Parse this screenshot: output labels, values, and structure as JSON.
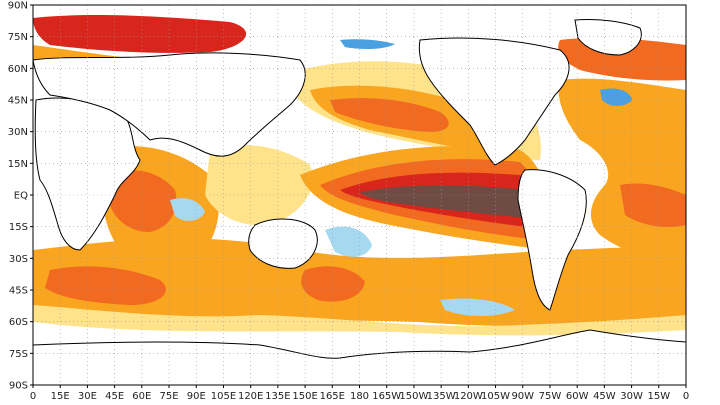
{
  "map": {
    "projection": "equirectangular",
    "lon_range": [
      0,
      360
    ],
    "lat_range": [
      -90,
      90
    ],
    "gridlines": "dotted",
    "y_ticks": [
      {
        "lat": 90,
        "label": "90N"
      },
      {
        "lat": 75,
        "label": "75N"
      },
      {
        "lat": 60,
        "label": "60N"
      },
      {
        "lat": 45,
        "label": "45N"
      },
      {
        "lat": 30,
        "label": "30N"
      },
      {
        "lat": 15,
        "label": "15N"
      },
      {
        "lat": 0,
        "label": "EQ"
      },
      {
        "lat": -15,
        "label": "15S"
      },
      {
        "lat": -30,
        "label": "30S"
      },
      {
        "lat": -45,
        "label": "45S"
      },
      {
        "lat": -60,
        "label": "60S"
      },
      {
        "lat": -75,
        "label": "75S"
      },
      {
        "lat": -90,
        "label": "90S"
      }
    ],
    "x_ticks": [
      {
        "lon": 0,
        "label": "0"
      },
      {
        "lon": 15,
        "label": "15E"
      },
      {
        "lon": 30,
        "label": "30E"
      },
      {
        "lon": 45,
        "label": "45E"
      },
      {
        "lon": 60,
        "label": "60E"
      },
      {
        "lon": 75,
        "label": "75E"
      },
      {
        "lon": 90,
        "label": "90E"
      },
      {
        "lon": 105,
        "label": "105E"
      },
      {
        "lon": 120,
        "label": "120E"
      },
      {
        "lon": 135,
        "label": "135E"
      },
      {
        "lon": 150,
        "label": "150E"
      },
      {
        "lon": 165,
        "label": "165E"
      },
      {
        "lon": 180,
        "label": "180"
      },
      {
        "lon": 195,
        "label": "165W"
      },
      {
        "lon": 210,
        "label": "150W"
      },
      {
        "lon": 225,
        "label": "135W"
      },
      {
        "lon": 240,
        "label": "120W"
      },
      {
        "lon": 255,
        "label": "105W"
      },
      {
        "lon": 270,
        "label": "90W"
      },
      {
        "lon": 285,
        "label": "75W"
      },
      {
        "lon": 300,
        "label": "60W"
      },
      {
        "lon": 315,
        "label": "45W"
      },
      {
        "lon": 330,
        "label": "30W"
      },
      {
        "lon": 345,
        "label": "15W"
      },
      {
        "lon": 360,
        "label": "0"
      }
    ],
    "colors": {
      "ocean_background": "#ffffff",
      "land": "#ffffff",
      "coast": "#000000",
      "anomaly_pale_yellow": "#ffe38a",
      "anomaly_orange": "#f9a520",
      "anomaly_red_orange": "#f26a1f",
      "anomaly_red": "#d9261c",
      "anomaly_dark": "#6e4b43",
      "anomaly_light_blue": "#a6d8f0",
      "anomaly_blue": "#4aa0e0"
    }
  }
}
